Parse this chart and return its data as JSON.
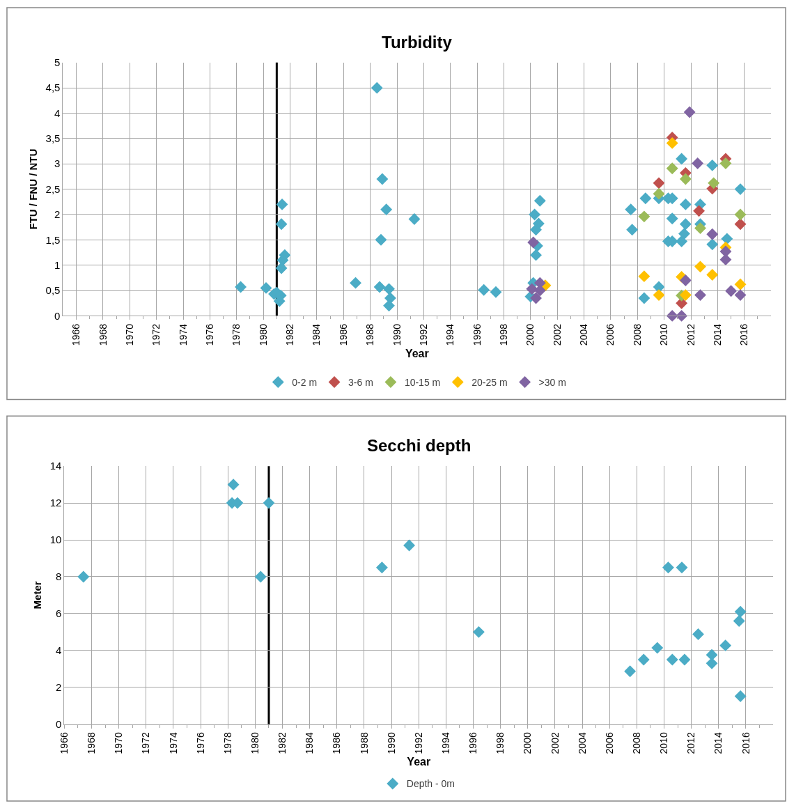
{
  "chart_data": [
    {
      "type": "scatter",
      "title": "Turbidity",
      "xlabel": "Year",
      "ylabel": "FTU / FNU / NTU",
      "xlim": [
        1965,
        2018
      ],
      "xticks": [
        1966,
        {
          "value": 1967,
          "label": null
        },
        1968,
        {
          "value": 1969,
          "label": null
        },
        1970,
        {
          "value": 1971,
          "label": null
        },
        1972,
        {
          "value": 1973,
          "label": null
        },
        1974,
        {
          "value": 1975,
          "label": null
        },
        1976,
        {
          "value": 1977,
          "label": null
        },
        1978,
        {
          "value": 1979,
          "label": null
        },
        1980,
        {
          "value": 1981,
          "label": null
        },
        1982,
        {
          "value": 1983,
          "label": null
        },
        1984,
        {
          "value": 1985,
          "label": null
        },
        1986,
        {
          "value": 1987,
          "label": null
        },
        1988,
        {
          "value": 1989,
          "label": null
        },
        1990,
        {
          "value": 1991,
          "label": null
        },
        1992,
        {
          "value": 1993,
          "label": null
        },
        1994,
        {
          "value": 1995,
          "label": null
        },
        1996,
        {
          "value": 1997,
          "label": null
        },
        1998,
        {
          "value": 1999,
          "label": null
        },
        2000,
        {
          "value": 2001,
          "label": null
        },
        2002,
        {
          "value": 2003,
          "label": null
        },
        2004,
        {
          "value": 2005,
          "label": null
        },
        2006,
        {
          "value": 2007,
          "label": null
        },
        2008,
        {
          "value": 2009,
          "label": null
        },
        2010,
        {
          "value": 2011,
          "label": null
        },
        2012,
        {
          "value": 2013,
          "label": null
        },
        2014,
        {
          "value": 2015,
          "label": null
        },
        2016,
        {
          "value": 2017,
          "label": null
        }
      ],
      "ylim": [
        0,
        5
      ],
      "yticks": [
        0,
        {
          "value": 0.5,
          "label": "0,5"
        },
        1,
        {
          "value": 1.5,
          "label": "1,5"
        },
        2,
        {
          "value": 2.5,
          "label": "2,5"
        },
        3,
        {
          "value": 3.5,
          "label": "3,5"
        },
        4,
        {
          "value": 4.5,
          "label": "4,5"
        },
        5
      ],
      "grid": true,
      "legend": "bottom",
      "marker": "diamond",
      "ref_lines": [
        {
          "axis": "x",
          "value": 1981,
          "color": "#000000"
        }
      ],
      "series": [
        {
          "name": "0-2 m",
          "color": "#4bacc6",
          "x": [
            1978.3,
            1980.2,
            1980.8,
            1981.0,
            1981.3,
            1981.2,
            1981.4,
            1981.35,
            1981.6,
            1981.45,
            1981.35,
            1986.9,
            1988.5,
            1988.9,
            1989.2,
            1988.8,
            1988.7,
            1989.4,
            1989.5,
            1989.4,
            1991.3,
            1996.5,
            1997.4,
            2000.7,
            2000.3,
            2000.6,
            2000.4,
            2000.5,
            2000.4,
            2000.2,
            2000.0,
            2007.5,
            2007.6,
            2008.6,
            2008.5,
            2009.6,
            2009.6,
            2010.3,
            2010.6,
            2010.6,
            2010.3,
            2010.6,
            2011.3,
            2011.3,
            2011.5,
            2011.6,
            2011.6,
            2012.7,
            2012.7,
            2013.6,
            2013.6,
            2014.7,
            2015.7
          ],
          "values": [
            0.57,
            0.55,
            0.43,
            0.46,
            0.4,
            0.29,
            2.2,
            1.81,
            1.2,
            1.1,
            0.94,
            0.65,
            4.5,
            2.7,
            2.1,
            1.5,
            0.57,
            0.53,
            0.35,
            0.2,
            1.91,
            0.51,
            0.47,
            2.27,
            2.0,
            1.82,
            1.7,
            1.38,
            1.2,
            0.65,
            0.38,
            2.1,
            1.7,
            2.32,
            0.35,
            2.32,
            0.57,
            2.32,
            2.32,
            1.92,
            1.47,
            1.47,
            3.1,
            1.47,
            1.62,
            1.81,
            2.2,
            2.2,
            1.81,
            2.97,
            1.41,
            1.52,
            2.5
          ]
        },
        {
          "name": "3-6 m",
          "color": "#c0504d",
          "x": [
            2009.6,
            2010.6,
            2011.6,
            2012.6,
            2013.6,
            2014.6,
            2015.7,
            2011.3
          ],
          "values": [
            2.62,
            3.52,
            2.82,
            2.07,
            2.51,
            3.1,
            1.81,
            0.25
          ]
        },
        {
          "name": "10-15 m",
          "color": "#9bbb59",
          "x": [
            2008.5,
            2009.6,
            2010.6,
            2011.6,
            2012.7,
            2013.7,
            2014.6,
            2015.7,
            2011.3
          ],
          "values": [
            1.96,
            2.41,
            2.91,
            2.7,
            1.73,
            2.62,
            3.01,
            2.0,
            0.4
          ]
        },
        {
          "name": "20-25 m",
          "color": "#ffc000",
          "x": [
            2001.1,
            2008.5,
            2009.6,
            2010.6,
            2011.3,
            2011.6,
            2012.7,
            2013.6,
            2014.6,
            2015.7
          ],
          "values": [
            0.6,
            0.78,
            0.41,
            3.41,
            0.77,
            0.41,
            0.97,
            0.81,
            1.35,
            0.62
          ]
        },
        {
          "name": ">30 m",
          "color": "#8064a2",
          "x": [
            2000.2,
            2000.1,
            2000.7,
            2000.4,
            2000.7,
            2010.6,
            2011.3,
            2011.6,
            2011.9,
            2012.5,
            2012.7,
            2013.6,
            2014.6,
            2014.6,
            2015.0,
            2015.7
          ],
          "values": [
            1.45,
            0.53,
            0.65,
            0.35,
            0.5,
            0,
            0,
            0.7,
            4.02,
            3.01,
            0.41,
            1.61,
            1.27,
            1.11,
            0.49,
            0.41
          ]
        }
      ]
    },
    {
      "type": "scatter",
      "title": "Secchi depth",
      "xlabel": "Year",
      "ylabel": "Meter",
      "xlim": [
        1966,
        2018
      ],
      "xticks": [
        1966,
        {
          "value": 1967,
          "label": null
        },
        1968,
        {
          "value": 1969,
          "label": null
        },
        1970,
        {
          "value": 1971,
          "label": null
        },
        1972,
        {
          "value": 1973,
          "label": null
        },
        1974,
        {
          "value": 1975,
          "label": null
        },
        1976,
        {
          "value": 1977,
          "label": null
        },
        1978,
        {
          "value": 1979,
          "label": null
        },
        1980,
        {
          "value": 1981,
          "label": null
        },
        1982,
        {
          "value": 1983,
          "label": null
        },
        1984,
        {
          "value": 1985,
          "label": null
        },
        1986,
        {
          "value": 1987,
          "label": null
        },
        1988,
        {
          "value": 1989,
          "label": null
        },
        1990,
        {
          "value": 1991,
          "label": null
        },
        1992,
        {
          "value": 1993,
          "label": null
        },
        1994,
        {
          "value": 1995,
          "label": null
        },
        1996,
        {
          "value": 1997,
          "label": null
        },
        1998,
        {
          "value": 1999,
          "label": null
        },
        2000,
        {
          "value": 2001,
          "label": null
        },
        2002,
        {
          "value": 2003,
          "label": null
        },
        2004,
        {
          "value": 2005,
          "label": null
        },
        2006,
        {
          "value": 2007,
          "label": null
        },
        2008,
        {
          "value": 2009,
          "label": null
        },
        2010,
        {
          "value": 2011,
          "label": null
        },
        2012,
        {
          "value": 2013,
          "label": null
        },
        2014,
        {
          "value": 2015,
          "label": null
        },
        2016,
        {
          "value": 2017,
          "label": null
        }
      ],
      "ylim": [
        0,
        14
      ],
      "yticks": [
        0,
        2,
        4,
        6,
        8,
        10,
        12,
        14
      ],
      "grid": true,
      "legend": "bottom",
      "marker": "diamond",
      "ref_lines": [
        {
          "axis": "x",
          "value": 1981,
          "color": "#000000"
        }
      ],
      "series": [
        {
          "name": "Depth - 0m",
          "color": "#4bacc6",
          "x": [
            1967.4,
            1978.4,
            1978.3,
            1978.7,
            1980.4,
            1981.0,
            1989.3,
            1991.3,
            1996.4,
            2007.5,
            2008.5,
            2009.5,
            2010.3,
            2010.6,
            2011.3,
            2011.5,
            2012.5,
            2013.5,
            2013.5,
            2014.5,
            2015.5,
            2015.6,
            2015.6
          ],
          "values": [
            8.0,
            13.0,
            12.0,
            12.0,
            8.0,
            12.0,
            8.5,
            9.7,
            5.0,
            2.87,
            3.5,
            4.14,
            8.5,
            3.5,
            8.5,
            3.5,
            4.88,
            3.76,
            3.3,
            4.27,
            5.6,
            6.1,
            1.52
          ]
        }
      ]
    }
  ]
}
